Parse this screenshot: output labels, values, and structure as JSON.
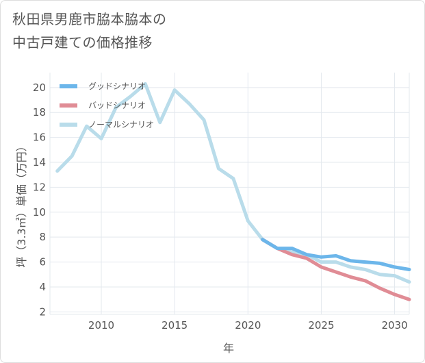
{
  "chart_data": {
    "type": "line",
    "title_line1": "秋田県男鹿市脇本脇本の",
    "title_line2": "中古戸建ての価格推移",
    "xlabel": "年",
    "ylabel": "坪（3.3㎡）単価（万円）",
    "xlim": [
      2006.5,
      2031
    ],
    "ylim": [
      1.8,
      21.2
    ],
    "xticks": [
      2010,
      2015,
      2020,
      2025,
      2030
    ],
    "yticks": [
      2,
      4,
      6,
      8,
      10,
      12,
      14,
      16,
      18,
      20
    ],
    "grid": true,
    "legend_position": "top-left",
    "series": [
      {
        "name": "グッドシナリオ",
        "color": "#6cb6ea",
        "x": [
          2021,
          2022,
          2023,
          2024,
          2025,
          2026,
          2027,
          2028,
          2029,
          2030,
          2031
        ],
        "y": [
          7.8,
          7.1,
          7.1,
          6.6,
          6.4,
          6.5,
          6.1,
          6.0,
          5.9,
          5.6,
          5.4
        ]
      },
      {
        "name": "バッドシナリオ",
        "color": "#e08c95",
        "x": [
          2021,
          2022,
          2023,
          2024,
          2025,
          2026,
          2027,
          2028,
          2029,
          2030,
          2031
        ],
        "y": [
          7.8,
          7.1,
          6.6,
          6.3,
          5.6,
          5.2,
          4.8,
          4.5,
          3.9,
          3.4,
          3.0
        ]
      },
      {
        "name": "ノーマルシナリオ",
        "color": "#b9dcea",
        "x": [
          2007,
          2008,
          2009,
          2010,
          2011,
          2012,
          2013,
          2014,
          2015,
          2016,
          2017,
          2018,
          2019,
          2020,
          2021,
          2022,
          2023,
          2024,
          2025,
          2026,
          2027,
          2028,
          2029,
          2030,
          2031
        ],
        "y": [
          13.3,
          14.5,
          16.9,
          15.9,
          18.4,
          19.3,
          20.3,
          17.2,
          19.8,
          18.7,
          17.4,
          13.5,
          12.7,
          9.3,
          7.8,
          7.1,
          6.8,
          6.6,
          6.0,
          6.0,
          5.6,
          5.4,
          5.0,
          4.9,
          4.4
        ]
      }
    ]
  }
}
